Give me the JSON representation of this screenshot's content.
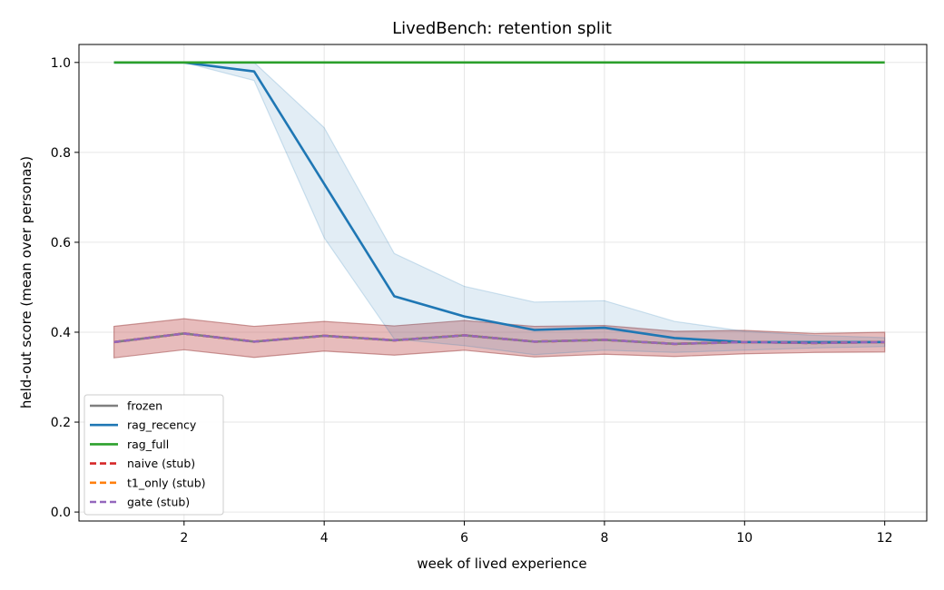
{
  "chart_data": {
    "type": "line",
    "title": "LivedBench: retention split",
    "xlabel": "week of lived experience",
    "ylabel": "held-out score (mean over personas)",
    "xlim": [
      0.5,
      12.6
    ],
    "ylim": [
      -0.02,
      1.04
    ],
    "xticks": [
      2,
      4,
      6,
      8,
      10,
      12
    ],
    "yticks": [
      0.0,
      0.2,
      0.4,
      0.6,
      0.8,
      1.0
    ],
    "ytick_labels": [
      "0.0",
      "0.2",
      "0.4",
      "0.6",
      "0.8",
      "1.0"
    ],
    "grid": true,
    "legend_position": "lower-left",
    "x": [
      1,
      2,
      3,
      4,
      5,
      6,
      7,
      8,
      9,
      10,
      11,
      12
    ],
    "series": [
      {
        "name": "frozen",
        "color": "#7f7f7f",
        "dash": "solid",
        "values": [
          0.378,
          0.397,
          0.379,
          0.392,
          0.382,
          0.393,
          0.379,
          0.383,
          0.374,
          0.378,
          0.376,
          0.378
        ],
        "band_lower": [
          0.343,
          0.361,
          0.344,
          0.358,
          0.349,
          0.36,
          0.345,
          0.351,
          0.346,
          0.352,
          0.355,
          0.356
        ],
        "band_upper": [
          0.413,
          0.43,
          0.413,
          0.424,
          0.414,
          0.426,
          0.413,
          0.415,
          0.402,
          0.404,
          0.397,
          0.4
        ],
        "band_color": "#c96b6b"
      },
      {
        "name": "rag_recency",
        "color": "#1f77b4",
        "dash": "solid",
        "values": [
          1.0,
          1.0,
          0.98,
          0.73,
          0.48,
          0.435,
          0.405,
          0.41,
          0.387,
          0.378,
          0.378,
          0.378
        ],
        "band_lower": [
          1.0,
          1.0,
          0.96,
          0.61,
          0.385,
          0.37,
          0.35,
          0.36,
          0.355,
          0.36,
          0.365,
          0.368
        ],
        "band_upper": [
          1.0,
          1.0,
          1.0,
          0.855,
          0.575,
          0.502,
          0.467,
          0.47,
          0.424,
          0.402,
          0.393,
          0.388
        ],
        "band_color": "#1f77b4"
      },
      {
        "name": "rag_full",
        "color": "#2ca02c",
        "dash": "solid",
        "values": [
          1.0,
          1.0,
          1.0,
          1.0,
          1.0,
          1.0,
          1.0,
          1.0,
          1.0,
          1.0,
          1.0,
          1.0
        ]
      },
      {
        "name": "naive (stub)",
        "color": "#d62728",
        "dash": "dashed",
        "values": [
          0.378,
          0.397,
          0.379,
          0.392,
          0.382,
          0.393,
          0.379,
          0.383,
          0.374,
          0.378,
          0.376,
          0.378
        ]
      },
      {
        "name": "t1_only (stub)",
        "color": "#ff7f0e",
        "dash": "dashed",
        "values": [
          0.378,
          0.397,
          0.379,
          0.392,
          0.382,
          0.393,
          0.379,
          0.383,
          0.374,
          0.378,
          0.376,
          0.378
        ]
      },
      {
        "name": "gate (stub)",
        "color": "#9467bd",
        "dash": "dashed",
        "values": [
          0.378,
          0.397,
          0.379,
          0.392,
          0.382,
          0.393,
          0.379,
          0.383,
          0.374,
          0.378,
          0.376,
          0.378
        ]
      }
    ]
  }
}
